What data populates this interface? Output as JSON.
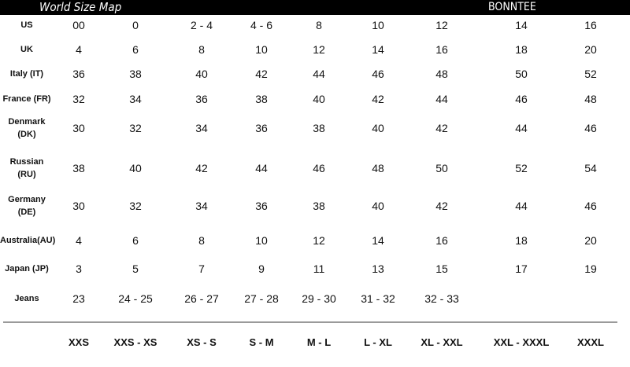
{
  "header": {
    "title": "World Size Map",
    "brand": "BONNTEE"
  },
  "rows": [
    {
      "label": "US",
      "values": [
        "00",
        "0",
        "2 - 4",
        "4 - 6",
        "8",
        "10",
        "12",
        "14",
        "16"
      ]
    },
    {
      "label": "UK",
      "values": [
        "4",
        "6",
        "8",
        "10",
        "12",
        "14",
        "16",
        "18",
        "20"
      ]
    },
    {
      "label": "Italy (IT)",
      "values": [
        "36",
        "38",
        "40",
        "42",
        "44",
        "46",
        "48",
        "50",
        "52"
      ]
    },
    {
      "label": "France (FR)",
      "values": [
        "32",
        "34",
        "36",
        "38",
        "40",
        "42",
        "44",
        "46",
        "48"
      ]
    },
    {
      "label": "Denmark (DK)",
      "values": [
        "30",
        "32",
        "34",
        "36",
        "38",
        "40",
        "42",
        "44",
        "46"
      ]
    },
    {
      "label": "Russian (RU)",
      "values": [
        "38",
        "40",
        "42",
        "44",
        "46",
        "48",
        "50",
        "52",
        "54"
      ]
    },
    {
      "label": "Germany (DE)",
      "values": [
        "30",
        "32",
        "34",
        "36",
        "38",
        "40",
        "42",
        "44",
        "46"
      ]
    },
    {
      "label": "Australia(AU)",
      "values": [
        "4",
        "6",
        "8",
        "10",
        "12",
        "14",
        "16",
        "18",
        "20"
      ]
    },
    {
      "label": "Japan (JP)",
      "values": [
        "3",
        "5",
        "7",
        "9",
        "11",
        "13",
        "15",
        "17",
        "19"
      ]
    },
    {
      "label": "Jeans",
      "values": [
        "23",
        "24 - 25",
        "26 - 27",
        "27 - 28",
        "29 - 30",
        "31 - 32",
        "32 - 33",
        "",
        ""
      ]
    }
  ],
  "sizes": [
    "XXS",
    "XXS - XS",
    "XS - S",
    "S - M",
    "M - L",
    "L - XL",
    "XL - XXL",
    "XXL - XXXL",
    "XXXL"
  ]
}
